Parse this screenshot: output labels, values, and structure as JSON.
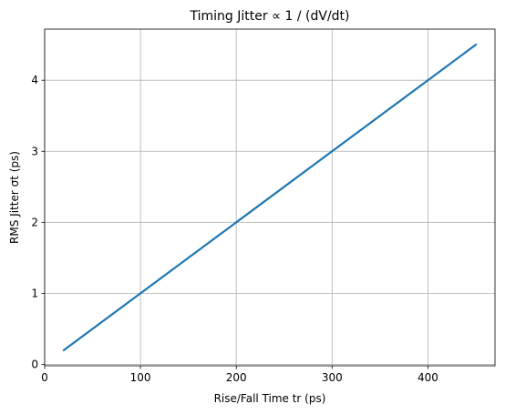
{
  "chart_data": {
    "type": "line",
    "title": "Timing Jitter ∝ 1 / (dV/dt)",
    "xlabel": "Rise/Fall Time tr (ps)",
    "ylabel": "RMS Jitter σt (ps)",
    "xlim": [
      0,
      470
    ],
    "ylim": [
      -0.02,
      4.72
    ],
    "x_ticks": [
      0,
      100,
      200,
      300,
      400
    ],
    "y_ticks": [
      0,
      1,
      2,
      3,
      4
    ],
    "grid": true,
    "series": [
      {
        "color": "#1f77b4",
        "x": [
          20,
          100,
          200,
          300,
          400,
          450
        ],
        "y": [
          0.2,
          1.0,
          2.0,
          3.0,
          4.0,
          4.5
        ]
      }
    ]
  }
}
